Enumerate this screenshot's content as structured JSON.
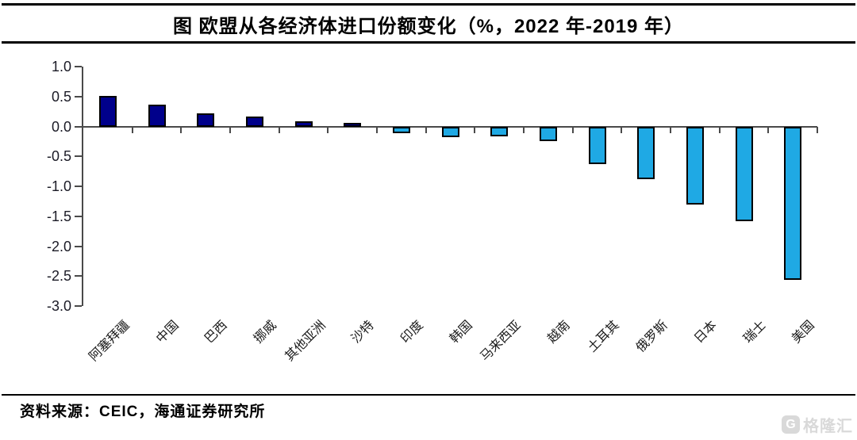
{
  "chart_data": {
    "type": "bar",
    "title": "图 欧盟从各经济体进口份额变化（%，2022 年-2019 年）",
    "categories": [
      "阿塞拜疆",
      "中国",
      "巴西",
      "挪威",
      "其他亚洲",
      "沙特",
      "印度",
      "韩国",
      "马来西亚",
      "越南",
      "土耳其",
      "俄罗斯",
      "日本",
      "瑞士",
      "美国"
    ],
    "values": [
      0.52,
      0.37,
      0.22,
      0.17,
      0.09,
      0.06,
      -0.11,
      -0.17,
      -0.16,
      -0.24,
      -0.62,
      -0.88,
      -1.3,
      -1.57,
      -2.56
    ],
    "xlabel": "",
    "ylabel": "",
    "ylim": [
      -3.0,
      1.0
    ],
    "ytick_step": 0.5,
    "ytick_labels": [
      "1.0",
      "0.5",
      "0.0",
      "-0.5",
      "-1.0",
      "-1.5",
      "-2.0",
      "-2.5",
      "-3.0"
    ],
    "grid": false,
    "legend": "none",
    "colors": {
      "positive_bar": "#00008B",
      "negative_bar": "#1FA9E4",
      "bar_border": "#000000",
      "axis": "#4a4a4a"
    }
  },
  "footer": {
    "source": "资料来源：CEIC，海通证券研究所"
  },
  "watermark": {
    "icon_letter": "G",
    "text": "格隆汇"
  }
}
